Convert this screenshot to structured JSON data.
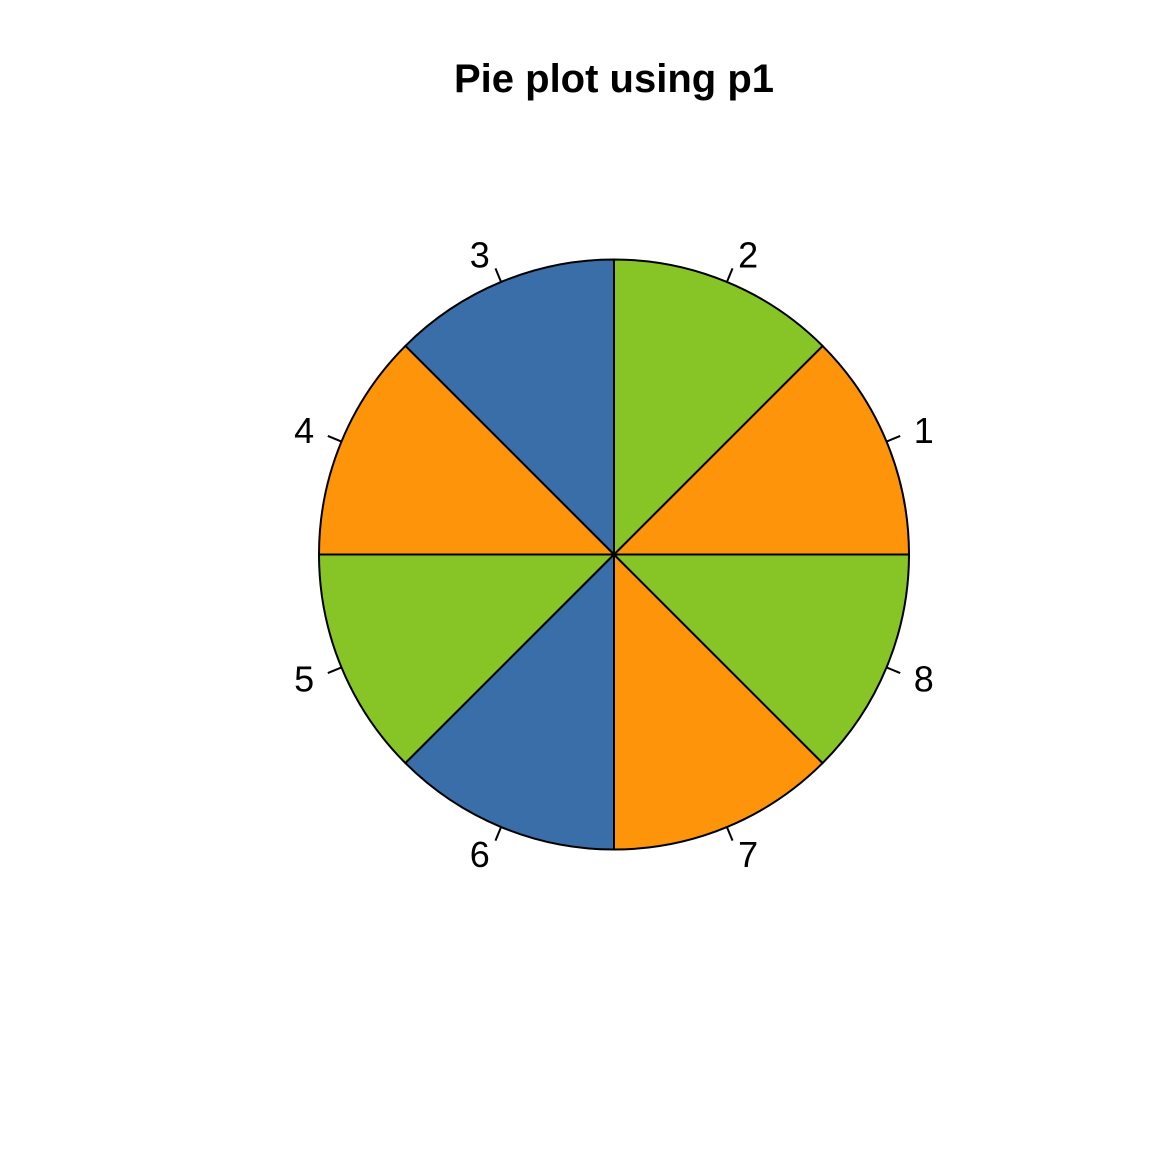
{
  "page": {
    "background_color": "#FFFFFF"
  },
  "chart_data": {
    "type": "pie",
    "title": "Pie plot using p1",
    "labels": [
      "1",
      "2",
      "3",
      "4",
      "5",
      "6",
      "7",
      "8"
    ],
    "values": [
      1,
      1,
      1,
      1,
      1,
      1,
      1,
      1
    ],
    "slice_percent_each": 12.5,
    "palette": [
      "#FD9409",
      "#87C425",
      "#3A6EA9"
    ],
    "slice_colors": [
      "#FD9409",
      "#87C425",
      "#3A6EA9",
      "#FD9409",
      "#87C425",
      "#3A6EA9",
      "#FD9409",
      "#87C425"
    ],
    "start_angle_deg": 0,
    "direction": "counterclockwise",
    "outline_color": "#000000",
    "label_color": "#000000",
    "title_color": "#000000",
    "legend": "none",
    "grid": "off"
  }
}
